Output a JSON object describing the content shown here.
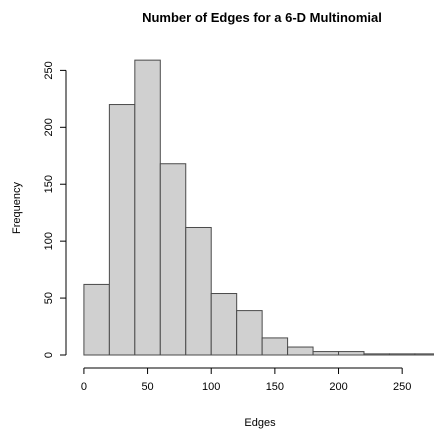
{
  "chart_data": {
    "type": "bar",
    "title": "Number of Edges for a 6-D Multinomial",
    "xlabel": "Edges",
    "ylabel": "Frequency",
    "bin_edges": [
      0,
      20,
      40,
      60,
      80,
      100,
      120,
      140,
      160,
      180,
      200,
      220,
      240,
      260,
      280
    ],
    "values": [
      62,
      220,
      259,
      168,
      112,
      54,
      39,
      15,
      7,
      3,
      3,
      1,
      1,
      1
    ],
    "xlim": [
      -7,
      275
    ],
    "ylim": [
      0,
      260
    ],
    "x_ticks": [
      0,
      50,
      100,
      150,
      200,
      250
    ],
    "y_ticks": [
      0,
      50,
      100,
      150,
      200,
      250
    ],
    "grid": false,
    "colors": {
      "bar_fill": "#d0d0d0",
      "bar_stroke": "#4a4a4a",
      "axis": "#000000"
    }
  }
}
